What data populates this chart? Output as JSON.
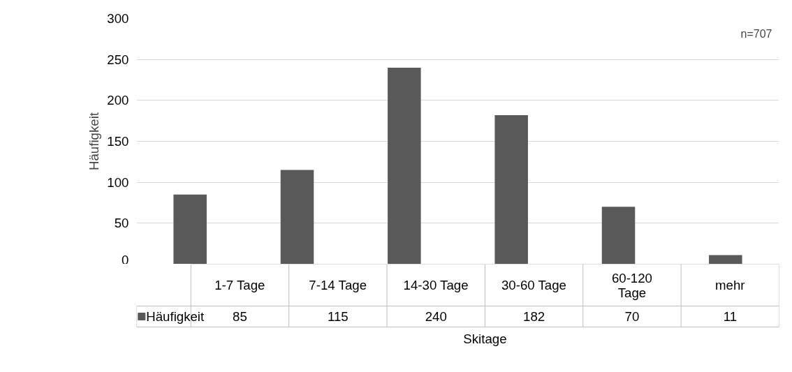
{
  "chart_data": {
    "type": "bar",
    "xlabel": "Skitage",
    "ylabel": "Häufigkeit",
    "categories": [
      "1-7 Tage",
      "7-14 Tage",
      "14-30 Tage",
      "30-60 Tage",
      "60-120 Tage",
      "mehr"
    ],
    "series": [
      {
        "name": "Häufigkeit",
        "color": "#595959",
        "values": [
          85,
          115,
          240,
          182,
          70,
          11
        ]
      }
    ],
    "ylim": [
      0,
      300
    ],
    "yticks": [
      0,
      50,
      100,
      150,
      200,
      250,
      300
    ],
    "grid": "y",
    "data_labels": true,
    "annotations": [
      "n=707"
    ]
  }
}
